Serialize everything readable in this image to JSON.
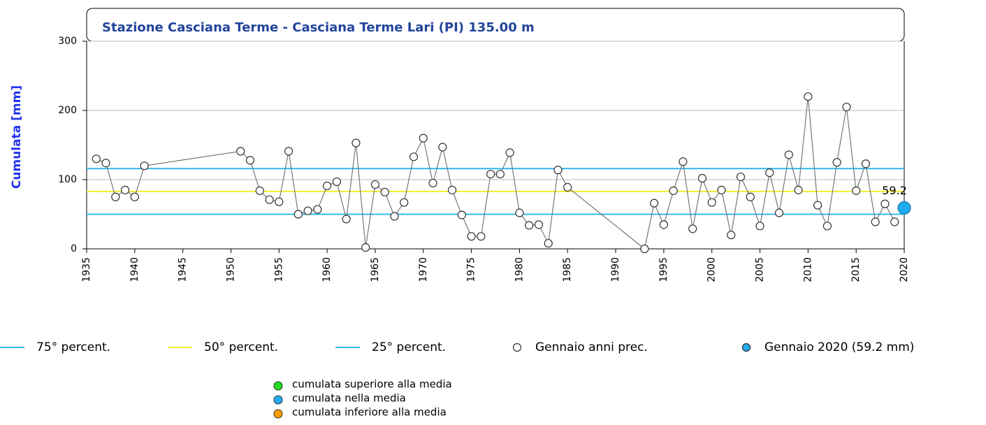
{
  "chart_data": {
    "type": "line",
    "title": "Stazione Casciana Terme - Casciana Terme Lari (PI) 135.00 m",
    "y_label": "Cumulata [mm]",
    "xlim": [
      1935,
      2020
    ],
    "xticks": [
      1935,
      1940,
      1945,
      1950,
      1955,
      1960,
      1965,
      1970,
      1975,
      1980,
      1985,
      1990,
      1995,
      2000,
      2005,
      2010,
      2015,
      2020
    ],
    "ylim": [
      0,
      300
    ],
    "yticks": [
      0,
      100,
      200,
      300
    ],
    "grid": true,
    "reference_lines": [
      {
        "name": "75° percent.",
        "value": 116,
        "color": "#33bbee"
      },
      {
        "name": "50° percent.",
        "value": 83,
        "color": "#eeee33"
      },
      {
        "name": "25° percent.",
        "value": 50,
        "color": "#33bbee"
      }
    ],
    "series": [
      {
        "name": "Gennaio anni prec.",
        "color": "#ffffff",
        "x": [
          1936,
          1937,
          1938,
          1939,
          1940,
          1941,
          1951,
          1952,
          1953,
          1954,
          1955,
          1956,
          1957,
          1958,
          1959,
          1960,
          1961,
          1962,
          1963,
          1964,
          1965,
          1966,
          1967,
          1968,
          1969,
          1970,
          1971,
          1972,
          1973,
          1974,
          1975,
          1976,
          1977,
          1978,
          1979,
          1980,
          1981,
          1982,
          1983,
          1984,
          1985,
          1993,
          1994,
          1995,
          1996,
          1997,
          1998,
          1999,
          2000,
          2001,
          2002,
          2003,
          2004,
          2005,
          2006,
          2007,
          2008,
          2009,
          2010,
          2011,
          2012,
          2013,
          2014,
          2015,
          2016,
          2017,
          2018,
          2019
        ],
        "values": [
          130,
          124,
          75,
          85,
          75,
          120,
          141,
          128,
          84,
          71,
          68,
          141,
          50,
          55,
          57,
          91,
          97,
          43,
          153,
          2,
          93,
          82,
          47,
          67,
          133,
          160,
          95,
          147,
          85,
          49,
          18,
          18,
          108,
          108,
          139,
          52,
          34,
          35,
          8,
          114,
          89,
          0,
          66,
          35,
          84,
          126,
          29,
          102,
          67,
          85,
          20,
          104,
          75,
          33,
          110,
          52,
          136,
          85,
          220,
          63,
          33,
          125,
          205,
          84,
          123,
          39,
          65,
          39
        ]
      },
      {
        "name": "Gennaio 2020 (59.2 mm)",
        "color": "#22aaee",
        "x": [
          2020
        ],
        "values": [
          59.2
        ],
        "value_labels": [
          "59.2"
        ]
      }
    ],
    "notes": [
      {
        "label": "cumulata superiore alla media",
        "color": "#22dd22"
      },
      {
        "label": "cumulata nella media",
        "color": "#22aaee"
      },
      {
        "label": "cumulata inferiore alla media",
        "color": "#ff9900"
      }
    ]
  }
}
